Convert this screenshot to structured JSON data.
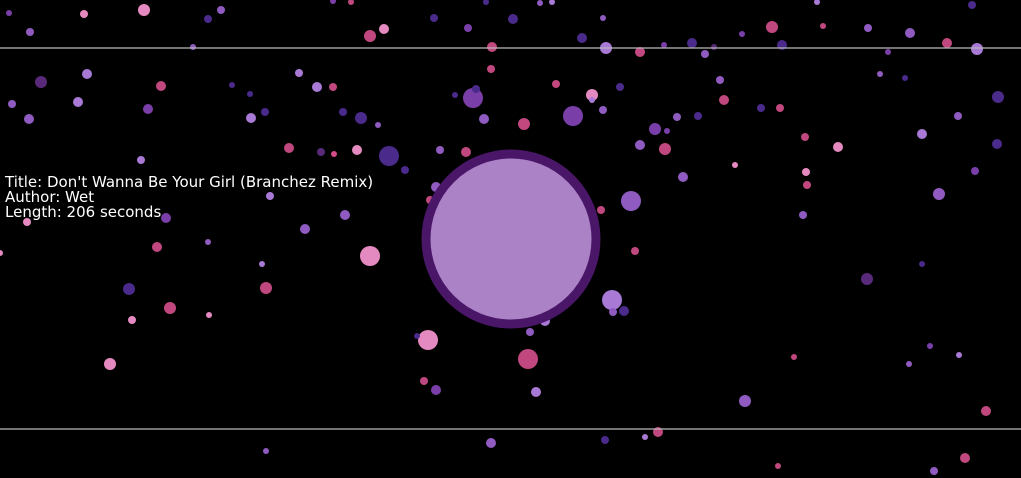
{
  "track": {
    "title_line": "Title: Don't Wanna Be Your Girl (Branchez Remix)",
    "author_line": "Author: Wet",
    "length_line": "Length: 206 seconds"
  },
  "colors": {
    "background": "#000000",
    "guide_line": "#b9b9b9",
    "orb_fill": "#ab82c5",
    "orb_ring": "#4a1768",
    "particle_palette": [
      "#e48ac0",
      "#c1487f",
      "#7a3ea8",
      "#4a2a8a",
      "#8f5bc0",
      "#a979d6",
      "#5a2a7a",
      "#d44a8a"
    ]
  },
  "icons": {
    "orb": "audio-visualizer-orb",
    "particles": "music-particles"
  }
}
